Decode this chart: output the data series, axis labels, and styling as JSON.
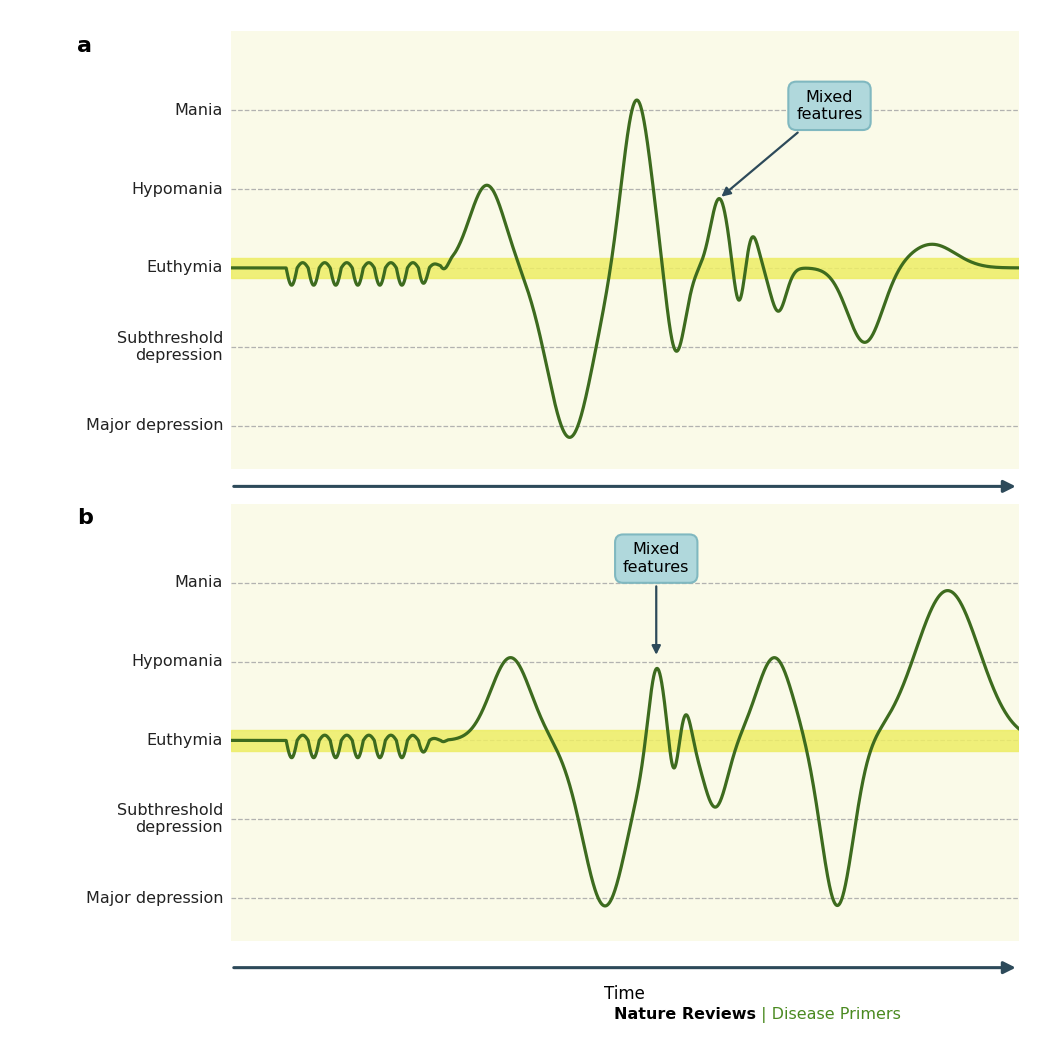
{
  "panel_bg": "#fafae8",
  "yellow_band_color": "#eeee66",
  "line_color": "#3d6b1e",
  "line_width": 2.3,
  "arrow_color": "#2d4a5a",
  "box_bg": "#b0d8dc",
  "box_edge": "#80b8c0",
  "dashed_color": "#aaaaaa",
  "white_bg": "#ffffff",
  "panel_a_label": "a",
  "panel_b_label": "b",
  "time_label": "Time",
  "footer_bold": "Nature Reviews",
  "footer_green": " | Disease Primers",
  "euthymia_y": 2.0,
  "euthymia_band_half": 0.13,
  "y_labels": [
    "Mania",
    "Hypomania",
    "Euthymia",
    "Subthreshold\ndepression",
    "Major depression"
  ],
  "y_vals": [
    4.0,
    3.0,
    2.0,
    1.0,
    0.0
  ],
  "ylim": [
    -0.55,
    5.0
  ],
  "xlim": [
    0,
    10
  ]
}
